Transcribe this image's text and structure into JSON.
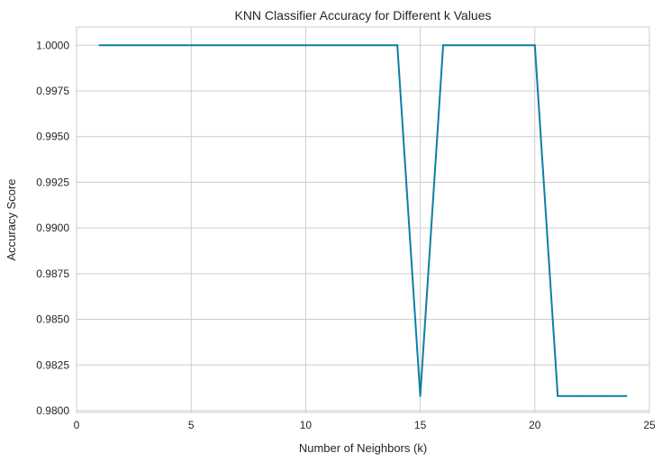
{
  "chart_data": {
    "type": "line",
    "title": "KNN Classifier Accuracy for Different k Values",
    "xlabel": "Number of Neighbors (k)",
    "ylabel": "Accuracy Score",
    "xlim": [
      0,
      25
    ],
    "ylim": [
      0.9799,
      1.001
    ],
    "xticks": [
      0,
      5,
      10,
      15,
      20,
      25
    ],
    "xtick_labels": [
      "0",
      "5",
      "10",
      "15",
      "20",
      "25"
    ],
    "yticks": [
      0.98,
      0.9825,
      0.985,
      0.9875,
      0.99,
      0.9925,
      0.995,
      0.9975,
      1.0
    ],
    "ytick_labels": [
      "0.9800",
      "0.9825",
      "0.9850",
      "0.9875",
      "0.9900",
      "0.9925",
      "0.9950",
      "0.9975",
      "1.0000"
    ],
    "grid": true,
    "line_color": "#0e7fa5",
    "series": [
      {
        "x": [
          1,
          2,
          3,
          4,
          5,
          6,
          7,
          8,
          9,
          10,
          11,
          12,
          13,
          14,
          15,
          16,
          17,
          18,
          19,
          20,
          21,
          22,
          23,
          24
        ],
        "y": [
          1.0,
          1.0,
          1.0,
          1.0,
          1.0,
          1.0,
          1.0,
          1.0,
          1.0,
          1.0,
          1.0,
          1.0,
          1.0,
          1.0,
          0.9808,
          1.0,
          1.0,
          1.0,
          1.0,
          1.0,
          0.9808,
          0.9808,
          0.9808,
          0.9808
        ]
      }
    ]
  }
}
